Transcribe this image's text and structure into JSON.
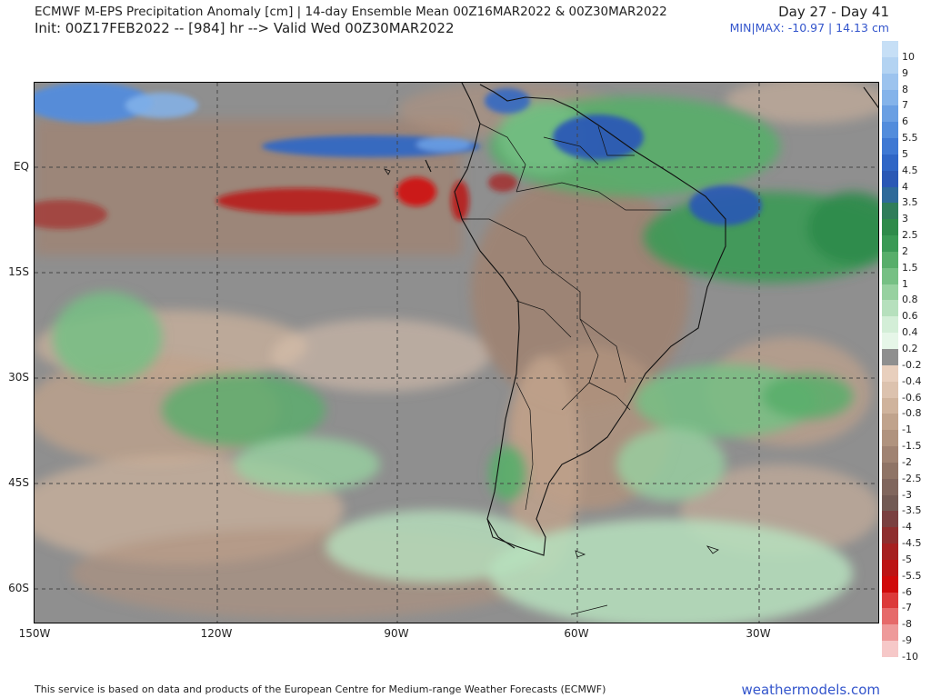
{
  "header": {
    "title": "ECMWF M-EPS Precipitation Anomaly [cm] | 14-day Ensemble Mean 00Z16MAR2022 & 00Z30MAR2022",
    "init": "Init: 00Z17FEB2022 -- [984] hr --> Valid Wed 00Z30MAR2022",
    "days": "Day 27 - Day 41",
    "minmax": "MIN|MAX: -10.97 | 14.13 cm"
  },
  "map": {
    "lat_labels": [
      "EQ",
      "15S",
      "30S",
      "45S",
      "60S"
    ],
    "lon_labels": [
      "150W",
      "120W",
      "90W",
      "60W",
      "30W"
    ]
  },
  "colorbar": {
    "labels": [
      "10",
      "9",
      "8",
      "7",
      "6",
      "5.5",
      "5",
      "4.5",
      "4",
      "3.5",
      "3",
      "2.5",
      "2",
      "1.5",
      "1",
      "0.8",
      "0.6",
      "0.4",
      "0.2",
      "-0.2",
      "-0.4",
      "-0.6",
      "-0.8",
      "-1",
      "-1.5",
      "-2",
      "-2.5",
      "-3",
      "-3.5",
      "-4",
      "-4.5",
      "-5",
      "-5.5",
      "-6",
      "-7",
      "-8",
      "-9",
      "-10"
    ],
    "colors": [
      "#c6dff6",
      "#b3d3f2",
      "#9cc3ee",
      "#84b3ea",
      "#6a9fe3",
      "#528cdc",
      "#3e78d3",
      "#2f66c6",
      "#2a58b5",
      "#2e6a9a",
      "#2f7d5a",
      "#2e8b4a",
      "#3a9a55",
      "#57ae6a",
      "#76c084",
      "#97d1a0",
      "#b6e0bd",
      "#d3eed7",
      "#e6f6e8",
      "#8f8f8f",
      "#e8cfbd",
      "#dcc2ae",
      "#cfb39c",
      "#c0a38c",
      "#b0937e",
      "#a08372",
      "#8f7466",
      "#80665d",
      "#725a54",
      "#7a4040",
      "#8e2e2e",
      "#a62020",
      "#bc1414",
      "#d00a0a",
      "#dc3a3a",
      "#e66a6a",
      "#ee9a9a",
      "#f6c8c8"
    ]
  },
  "footer": {
    "note": "This service is based on data and products of the European Centre for Medium-range Weather Forecasts (ECMWF)",
    "brand": "weathermodels.com"
  }
}
